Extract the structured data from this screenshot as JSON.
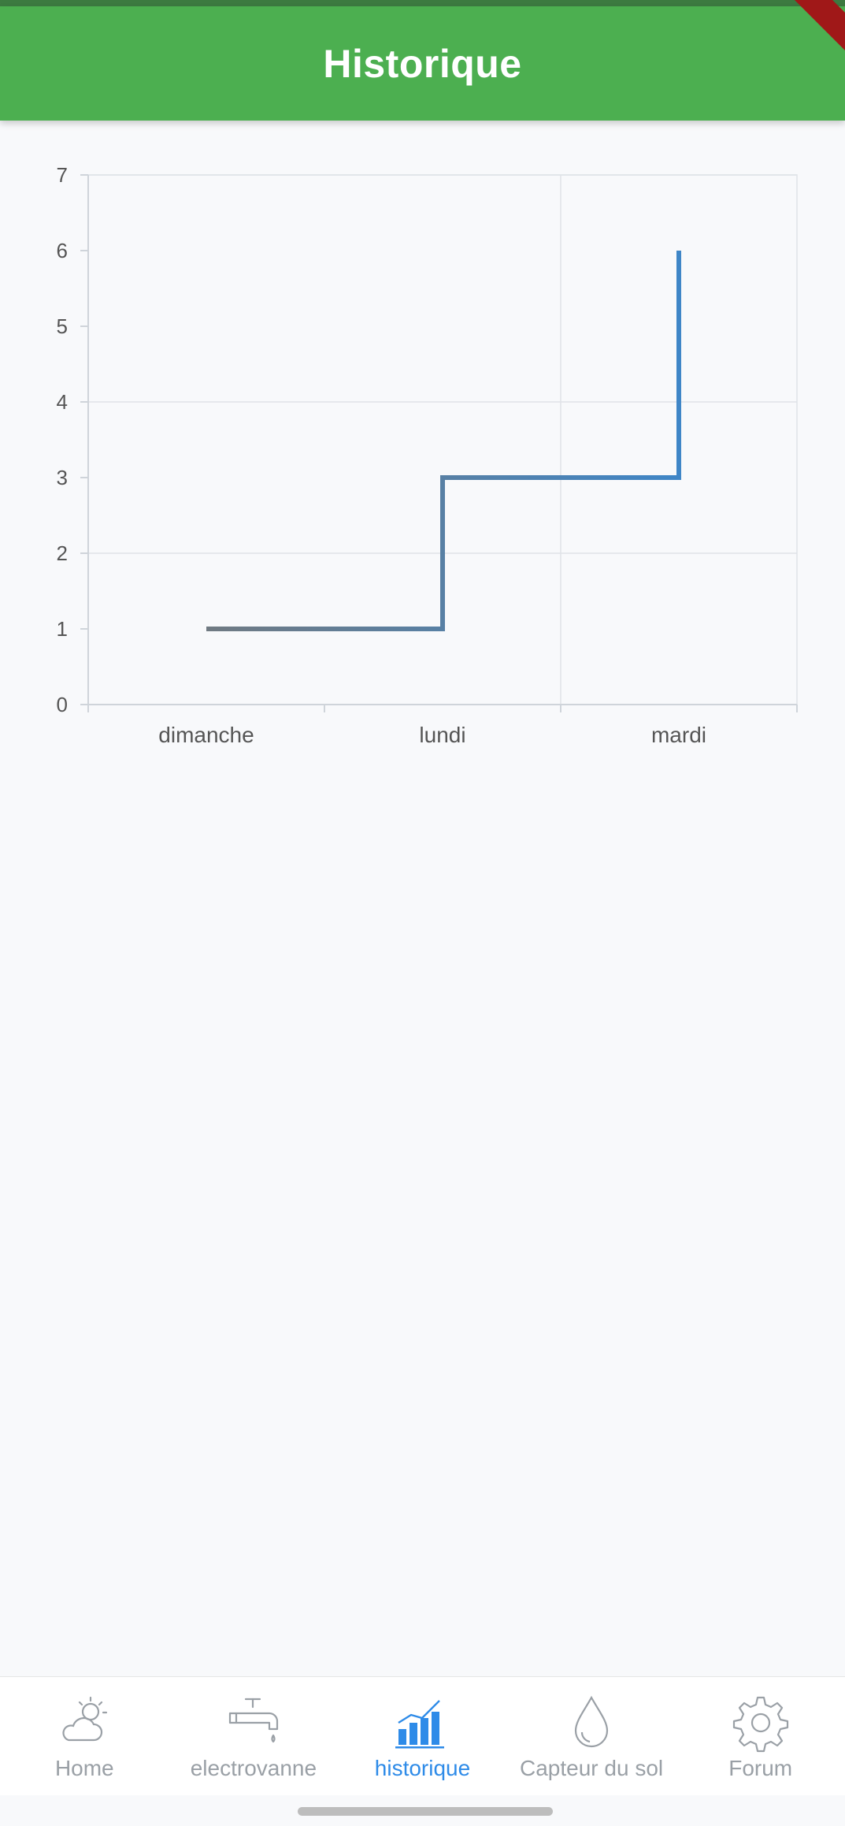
{
  "appbar": {
    "title": "Historique"
  },
  "colors": {
    "appbar": "#4caf50",
    "line": "#3f86c7",
    "active_nav": "#2e8be8",
    "inactive_nav": "#9aa0a6"
  },
  "chart_data": {
    "type": "line",
    "step": true,
    "categories": [
      "dimanche",
      "lundi",
      "mardi"
    ],
    "values": [
      1,
      3,
      6
    ],
    "ylim": [
      0,
      7
    ],
    "yticks": [
      "0",
      "1",
      "2",
      "3",
      "4",
      "5",
      "6",
      "7"
    ],
    "grid": true
  },
  "nav": {
    "items": [
      {
        "label": "Home",
        "icon": "weather-icon",
        "active": false
      },
      {
        "label": "electrovanne",
        "icon": "faucet-icon",
        "active": false
      },
      {
        "label": "historique",
        "icon": "bar-chart-icon",
        "active": true
      },
      {
        "label": "Capteur du sol",
        "icon": "water-drop-icon",
        "active": false
      },
      {
        "label": "Forum",
        "icon": "gear-icon",
        "active": false
      }
    ]
  }
}
